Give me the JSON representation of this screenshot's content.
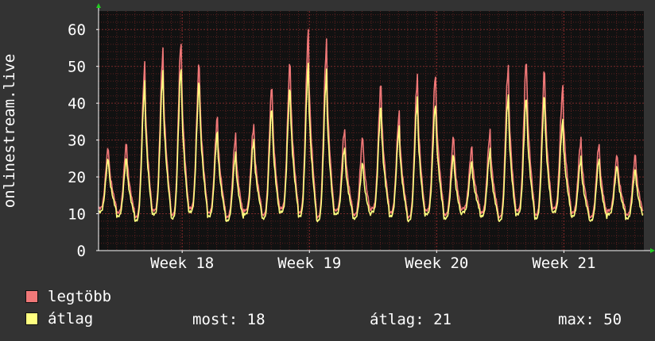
{
  "colors": {
    "background": "#333333",
    "plot_bg": "#111111",
    "grid": "#5a2020",
    "max_series": "#f07878",
    "avg_series": "#ffff80",
    "axis": "#ffffff",
    "arrow": "#22cc22"
  },
  "chart_data": {
    "type": "line",
    "title": "",
    "xlabel": "",
    "ylabel": "onlinestream.live",
    "ylim": [
      0,
      65
    ],
    "yticks": [
      0,
      10,
      20,
      30,
      40,
      50,
      60
    ],
    "xlim": [
      0,
      30
    ],
    "xticks": [
      {
        "pos": 4.6,
        "label": "Week 18"
      },
      {
        "pos": 11.6,
        "label": "Week 19"
      },
      {
        "pos": 18.6,
        "label": "Week 20"
      },
      {
        "pos": 25.6,
        "label": "Week 21"
      }
    ],
    "grid": true,
    "legend": "bottom-left",
    "daily_peaks": [
      {
        "day": 0,
        "max": 28,
        "avg": 25
      },
      {
        "day": 1,
        "max": 29,
        "avg": 25
      },
      {
        "day": 2,
        "max": 50,
        "avg": 45
      },
      {
        "day": 3,
        "max": 54,
        "avg": 48
      },
      {
        "day": 4,
        "max": 57,
        "avg": 50
      },
      {
        "day": 5,
        "max": 51,
        "avg": 46
      },
      {
        "day": 6,
        "max": 36,
        "avg": 32
      },
      {
        "day": 7,
        "max": 31,
        "avg": 26
      },
      {
        "day": 8,
        "max": 34,
        "avg": 30
      },
      {
        "day": 9,
        "max": 45,
        "avg": 39
      },
      {
        "day": 10,
        "max": 51,
        "avg": 44
      },
      {
        "day": 11,
        "max": 59,
        "avg": 50
      },
      {
        "day": 12,
        "max": 56,
        "avg": 48
      },
      {
        "day": 13,
        "max": 33,
        "avg": 28
      },
      {
        "day": 14,
        "max": 31,
        "avg": 24
      },
      {
        "day": 15,
        "max": 45,
        "avg": 39
      },
      {
        "day": 16,
        "max": 37,
        "avg": 33
      },
      {
        "day": 17,
        "max": 47,
        "avg": 41
      },
      {
        "day": 18,
        "max": 48,
        "avg": 40
      },
      {
        "day": 19,
        "max": 31,
        "avg": 26
      },
      {
        "day": 20,
        "max": 28,
        "avg": 24
      },
      {
        "day": 21,
        "max": 32,
        "avg": 27
      },
      {
        "day": 22,
        "max": 50,
        "avg": 42
      },
      {
        "day": 23,
        "max": 52,
        "avg": 42
      },
      {
        "day": 24,
        "max": 49,
        "avg": 42
      },
      {
        "day": 25,
        "max": 44,
        "avg": 35
      },
      {
        "day": 26,
        "max": 30,
        "avg": 25
      },
      {
        "day": 27,
        "max": 29,
        "avg": 25
      },
      {
        "day": 28,
        "max": 26,
        "avg": 23
      },
      {
        "day": 29,
        "max": 26,
        "avg": 22
      }
    ],
    "series": [
      {
        "name": "legtöbb",
        "color": "#f07878"
      },
      {
        "name": "átlag",
        "color": "#ffff80"
      }
    ]
  },
  "legend": {
    "items": [
      "legtöbb",
      "átlag"
    ]
  },
  "stats": {
    "most": "most: 18",
    "atlag": "átlag: 21",
    "max": "max: 50"
  }
}
